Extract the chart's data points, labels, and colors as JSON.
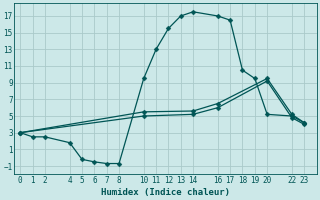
{
  "xlabel": "Humidex (Indice chaleur)",
  "bg_color": "#cce8e8",
  "grid_color": "#aacaca",
  "line_color": "#005555",
  "xlim": [
    -0.5,
    24
  ],
  "ylim": [
    -2,
    18.5
  ],
  "xticks": [
    0,
    1,
    2,
    4,
    5,
    6,
    7,
    8,
    10,
    11,
    12,
    13,
    14,
    16,
    17,
    18,
    19,
    20,
    22,
    23
  ],
  "yticks": [
    -1,
    1,
    3,
    5,
    7,
    9,
    11,
    13,
    15,
    17
  ],
  "line1_x": [
    0,
    1,
    2,
    4,
    5,
    6,
    7,
    8,
    10,
    11,
    12,
    13,
    14,
    16,
    17,
    18,
    19,
    20,
    22,
    23
  ],
  "line1_y": [
    3,
    2.5,
    2.5,
    1.8,
    -0.2,
    -0.5,
    -0.7,
    -0.7,
    9.5,
    13.0,
    15.5,
    17.0,
    17.5,
    17.0,
    16.5,
    10.5,
    9.5,
    5.2,
    5.0,
    4.2
  ],
  "line2_x": [
    0,
    10,
    14,
    16,
    20,
    22,
    23
  ],
  "line2_y": [
    3,
    5.5,
    5.6,
    6.5,
    9.5,
    5.2,
    4.2
  ],
  "line3_x": [
    0,
    10,
    14,
    16,
    20,
    22,
    23
  ],
  "line3_y": [
    3,
    5.0,
    5.2,
    6.0,
    9.2,
    4.8,
    4.0
  ]
}
